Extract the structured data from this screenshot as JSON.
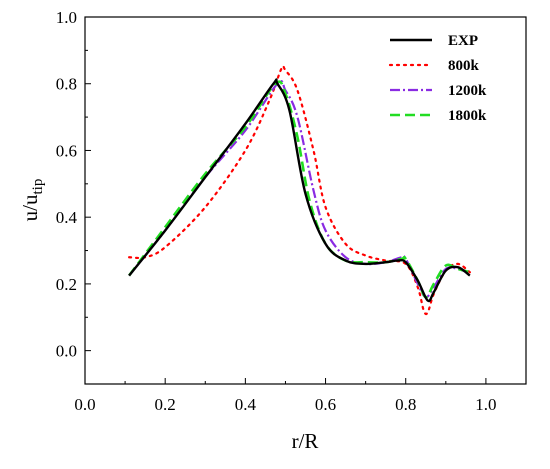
{
  "chart_data": {
    "type": "line",
    "xlabel": "r/R",
    "ylabel_main": "u/u",
    "ylabel_sub": "tip",
    "xlim": [
      0.0,
      1.1
    ],
    "ylim": [
      -0.1,
      1.0
    ],
    "x_ticks": [
      "0.0",
      "0.2",
      "0.4",
      "0.6",
      "0.8",
      "1.0"
    ],
    "y_ticks": [
      "0.0",
      "0.2",
      "0.4",
      "0.6",
      "0.8",
      "1.0"
    ],
    "grid": false,
    "legend_position": "top-right",
    "series": [
      {
        "name": "EXP",
        "color": "#000000",
        "style": "solid",
        "points": [
          [
            0.11,
            0.225
          ],
          [
            0.2,
            0.36
          ],
          [
            0.3,
            0.52
          ],
          [
            0.4,
            0.68
          ],
          [
            0.47,
            0.8
          ],
          [
            0.48,
            0.8
          ],
          [
            0.51,
            0.72
          ],
          [
            0.55,
            0.47
          ],
          [
            0.6,
            0.32
          ],
          [
            0.65,
            0.27
          ],
          [
            0.7,
            0.26
          ],
          [
            0.75,
            0.265
          ],
          [
            0.78,
            0.27
          ],
          [
            0.8,
            0.265
          ],
          [
            0.83,
            0.21
          ],
          [
            0.855,
            0.15
          ],
          [
            0.87,
            0.175
          ],
          [
            0.9,
            0.24
          ],
          [
            0.93,
            0.25
          ],
          [
            0.96,
            0.225
          ]
        ]
      },
      {
        "name": "800k",
        "color": "#ff0000",
        "style": "dotted",
        "points": [
          [
            0.11,
            0.28
          ],
          [
            0.15,
            0.28
          ],
          [
            0.2,
            0.31
          ],
          [
            0.3,
            0.43
          ],
          [
            0.4,
            0.6
          ],
          [
            0.46,
            0.75
          ],
          [
            0.49,
            0.845
          ],
          [
            0.5,
            0.84
          ],
          [
            0.53,
            0.78
          ],
          [
            0.57,
            0.6
          ],
          [
            0.6,
            0.43
          ],
          [
            0.65,
            0.32
          ],
          [
            0.7,
            0.285
          ],
          [
            0.75,
            0.27
          ],
          [
            0.8,
            0.26
          ],
          [
            0.83,
            0.19
          ],
          [
            0.845,
            0.12
          ],
          [
            0.855,
            0.115
          ],
          [
            0.87,
            0.17
          ],
          [
            0.9,
            0.24
          ],
          [
            0.93,
            0.26
          ],
          [
            0.96,
            0.235
          ]
        ]
      },
      {
        "name": "1200k",
        "color": "#8a2be2",
        "style": "dashdot",
        "points": [
          [
            0.11,
            0.225
          ],
          [
            0.2,
            0.36
          ],
          [
            0.3,
            0.52
          ],
          [
            0.4,
            0.66
          ],
          [
            0.48,
            0.8
          ],
          [
            0.5,
            0.78
          ],
          [
            0.53,
            0.7
          ],
          [
            0.57,
            0.48
          ],
          [
            0.6,
            0.36
          ],
          [
            0.65,
            0.28
          ],
          [
            0.7,
            0.26
          ],
          [
            0.75,
            0.265
          ],
          [
            0.79,
            0.28
          ],
          [
            0.8,
            0.275
          ],
          [
            0.83,
            0.2
          ],
          [
            0.85,
            0.16
          ],
          [
            0.87,
            0.19
          ],
          [
            0.9,
            0.245
          ],
          [
            0.93,
            0.245
          ],
          [
            0.96,
            0.23
          ]
        ]
      },
      {
        "name": "1800k",
        "color": "#22dd22",
        "style": "dashed",
        "points": [
          [
            0.11,
            0.225
          ],
          [
            0.2,
            0.37
          ],
          [
            0.3,
            0.53
          ],
          [
            0.4,
            0.67
          ],
          [
            0.475,
            0.8
          ],
          [
            0.5,
            0.77
          ],
          [
            0.53,
            0.64
          ],
          [
            0.56,
            0.45
          ],
          [
            0.6,
            0.32
          ],
          [
            0.65,
            0.27
          ],
          [
            0.7,
            0.265
          ],
          [
            0.75,
            0.265
          ],
          [
            0.79,
            0.275
          ],
          [
            0.8,
            0.275
          ],
          [
            0.83,
            0.21
          ],
          [
            0.85,
            0.16
          ],
          [
            0.87,
            0.2
          ],
          [
            0.9,
            0.255
          ],
          [
            0.93,
            0.245
          ],
          [
            0.96,
            0.235
          ]
        ]
      }
    ]
  }
}
